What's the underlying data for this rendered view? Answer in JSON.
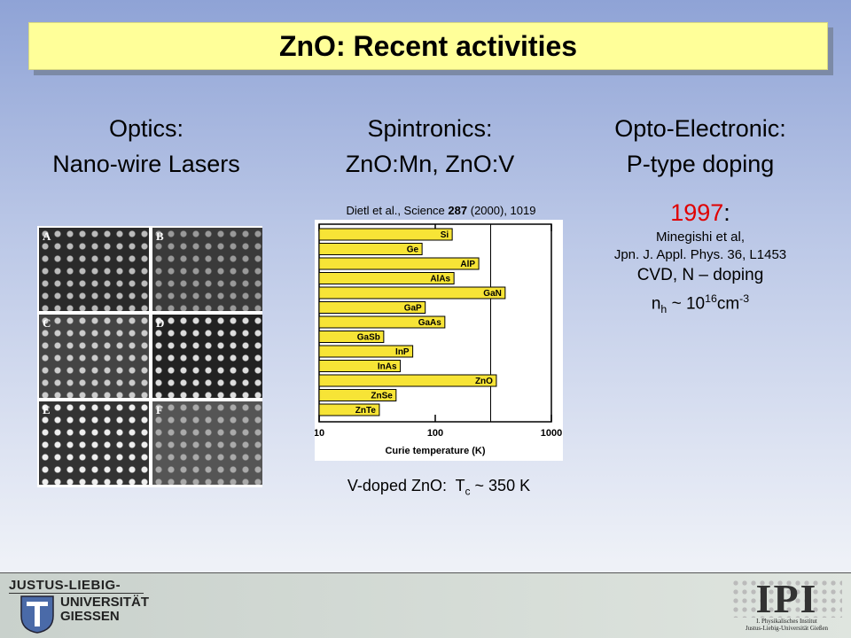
{
  "title": "ZnO: Recent activities",
  "columns": [
    {
      "heading": [
        "Optics:",
        "Nano-wire Lasers"
      ]
    },
    {
      "heading": [
        "Spintronics:",
        "ZnO:Mn, ZnO:V"
      ]
    },
    {
      "heading": [
        "Opto-Electronic:",
        "P-type doping"
      ]
    }
  ],
  "optics": {
    "panels": [
      "A",
      "B",
      "C",
      "D",
      "E",
      "F"
    ]
  },
  "spintronics": {
    "citation": {
      "authors": "Dietl et al., Science",
      "volume": "287",
      "pages": "(2000), 1019"
    },
    "chart": {
      "type": "bar",
      "orientation": "horizontal",
      "categories": [
        "Si",
        "Ge",
        "AlP",
        "AlAs",
        "GaN",
        "GaP",
        "GaAs",
        "GaSb",
        "InP",
        "InAs",
        "ZnO",
        "ZnSe",
        "ZnTe"
      ],
      "values": [
        140,
        77,
        237,
        145,
        400,
        82,
        121,
        36,
        64,
        50,
        336,
        46,
        33
      ],
      "xlim": [
        10,
        1000
      ],
      "xticks": [
        10,
        100,
        1000
      ],
      "xscale": "log",
      "xlabel": "Curie temperature (K)",
      "reference_line": 300,
      "color": "#f7e436"
    },
    "caption": {
      "text": "V-doped ZnO:",
      "symbol": "T",
      "sub": "c",
      "value": "~ 350 K"
    }
  },
  "p_type": {
    "year": "1997",
    "year_suffix": ":",
    "authors": "Minegishi et al,",
    "journal": "Jpn. J. Appl. Phys. 36, L1453",
    "method": "CVD, N – doping",
    "density": {
      "base": "n",
      "sub": "h",
      "mid": "~ 10",
      "exp1": "16",
      "unit": "cm",
      "exp2": "-3"
    }
  },
  "footer": {
    "university": [
      "JUSTUS-LIEBIG-",
      "UNIVERSITÄT",
      "GIESSEN"
    ],
    "institute": {
      "logo": "IPI",
      "lines": [
        "I. Physikalisches Institut",
        "Justus-Liebig-Universität Gießen"
      ]
    }
  }
}
